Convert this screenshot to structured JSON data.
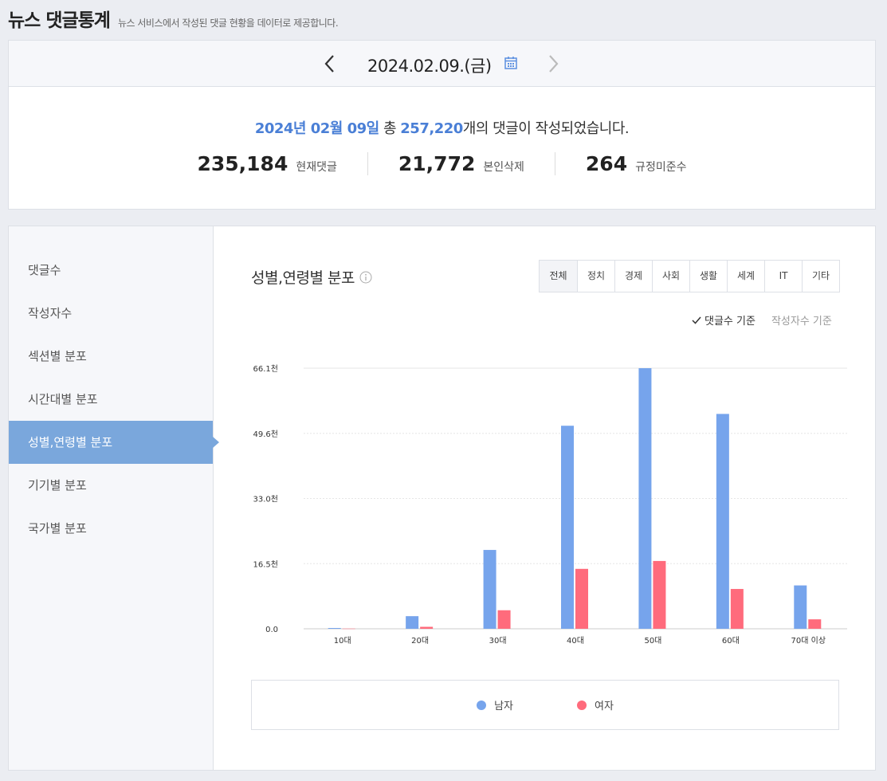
{
  "header": {
    "title": "뉴스 댓글통계",
    "description": "뉴스 서비스에서 작성된 댓글 현황을 데이터로 제공합니다."
  },
  "date_bar": {
    "date": "2024.02.09.(금)"
  },
  "summary": {
    "date_text": "2024년 02월 09일",
    "prefix": "총",
    "total": "257,220",
    "suffix": "개의 댓글이 작성되었습니다.",
    "stats": [
      {
        "value": "235,184",
        "label": "현재댓글"
      },
      {
        "value": "21,772",
        "label": "본인삭제"
      },
      {
        "value": "264",
        "label": "규정미준수"
      }
    ]
  },
  "sidebar": {
    "items": [
      {
        "label": "댓글수"
      },
      {
        "label": "작성자수"
      },
      {
        "label": "섹션별 분포"
      },
      {
        "label": "시간대별 분포"
      },
      {
        "label": "성별,연령별 분포"
      },
      {
        "label": "기기별 분포"
      },
      {
        "label": "국가별 분포"
      }
    ],
    "active_index": 4
  },
  "main": {
    "title": "성별,연령별 분포",
    "tabs": [
      "전체",
      "정치",
      "경제",
      "사회",
      "생활",
      "세계",
      "IT",
      "기타"
    ],
    "basis": {
      "selected": "댓글수 기준",
      "other": "작성자수 기준"
    }
  },
  "colors": {
    "accent": "#4a7fd6",
    "male": "#76a4ec",
    "female": "#ff6b7c"
  },
  "chart_data": {
    "type": "bar",
    "categories": [
      "10대",
      "20대",
      "30대",
      "40대",
      "50대",
      "60대",
      "70대 이상"
    ],
    "y_ticks": [
      "0.0",
      "16.5천",
      "33.0천",
      "49.6천",
      "66.1천"
    ],
    "ylim": [
      0,
      66100
    ],
    "series": [
      {
        "name": "남자",
        "values": [
          200,
          3200,
          20000,
          51500,
          66100,
          54500,
          11000
        ]
      },
      {
        "name": "여자",
        "values": [
          50,
          500,
          4700,
          15200,
          17200,
          10100,
          2400
        ]
      }
    ],
    "grid": true,
    "legend_position": "bottom"
  }
}
